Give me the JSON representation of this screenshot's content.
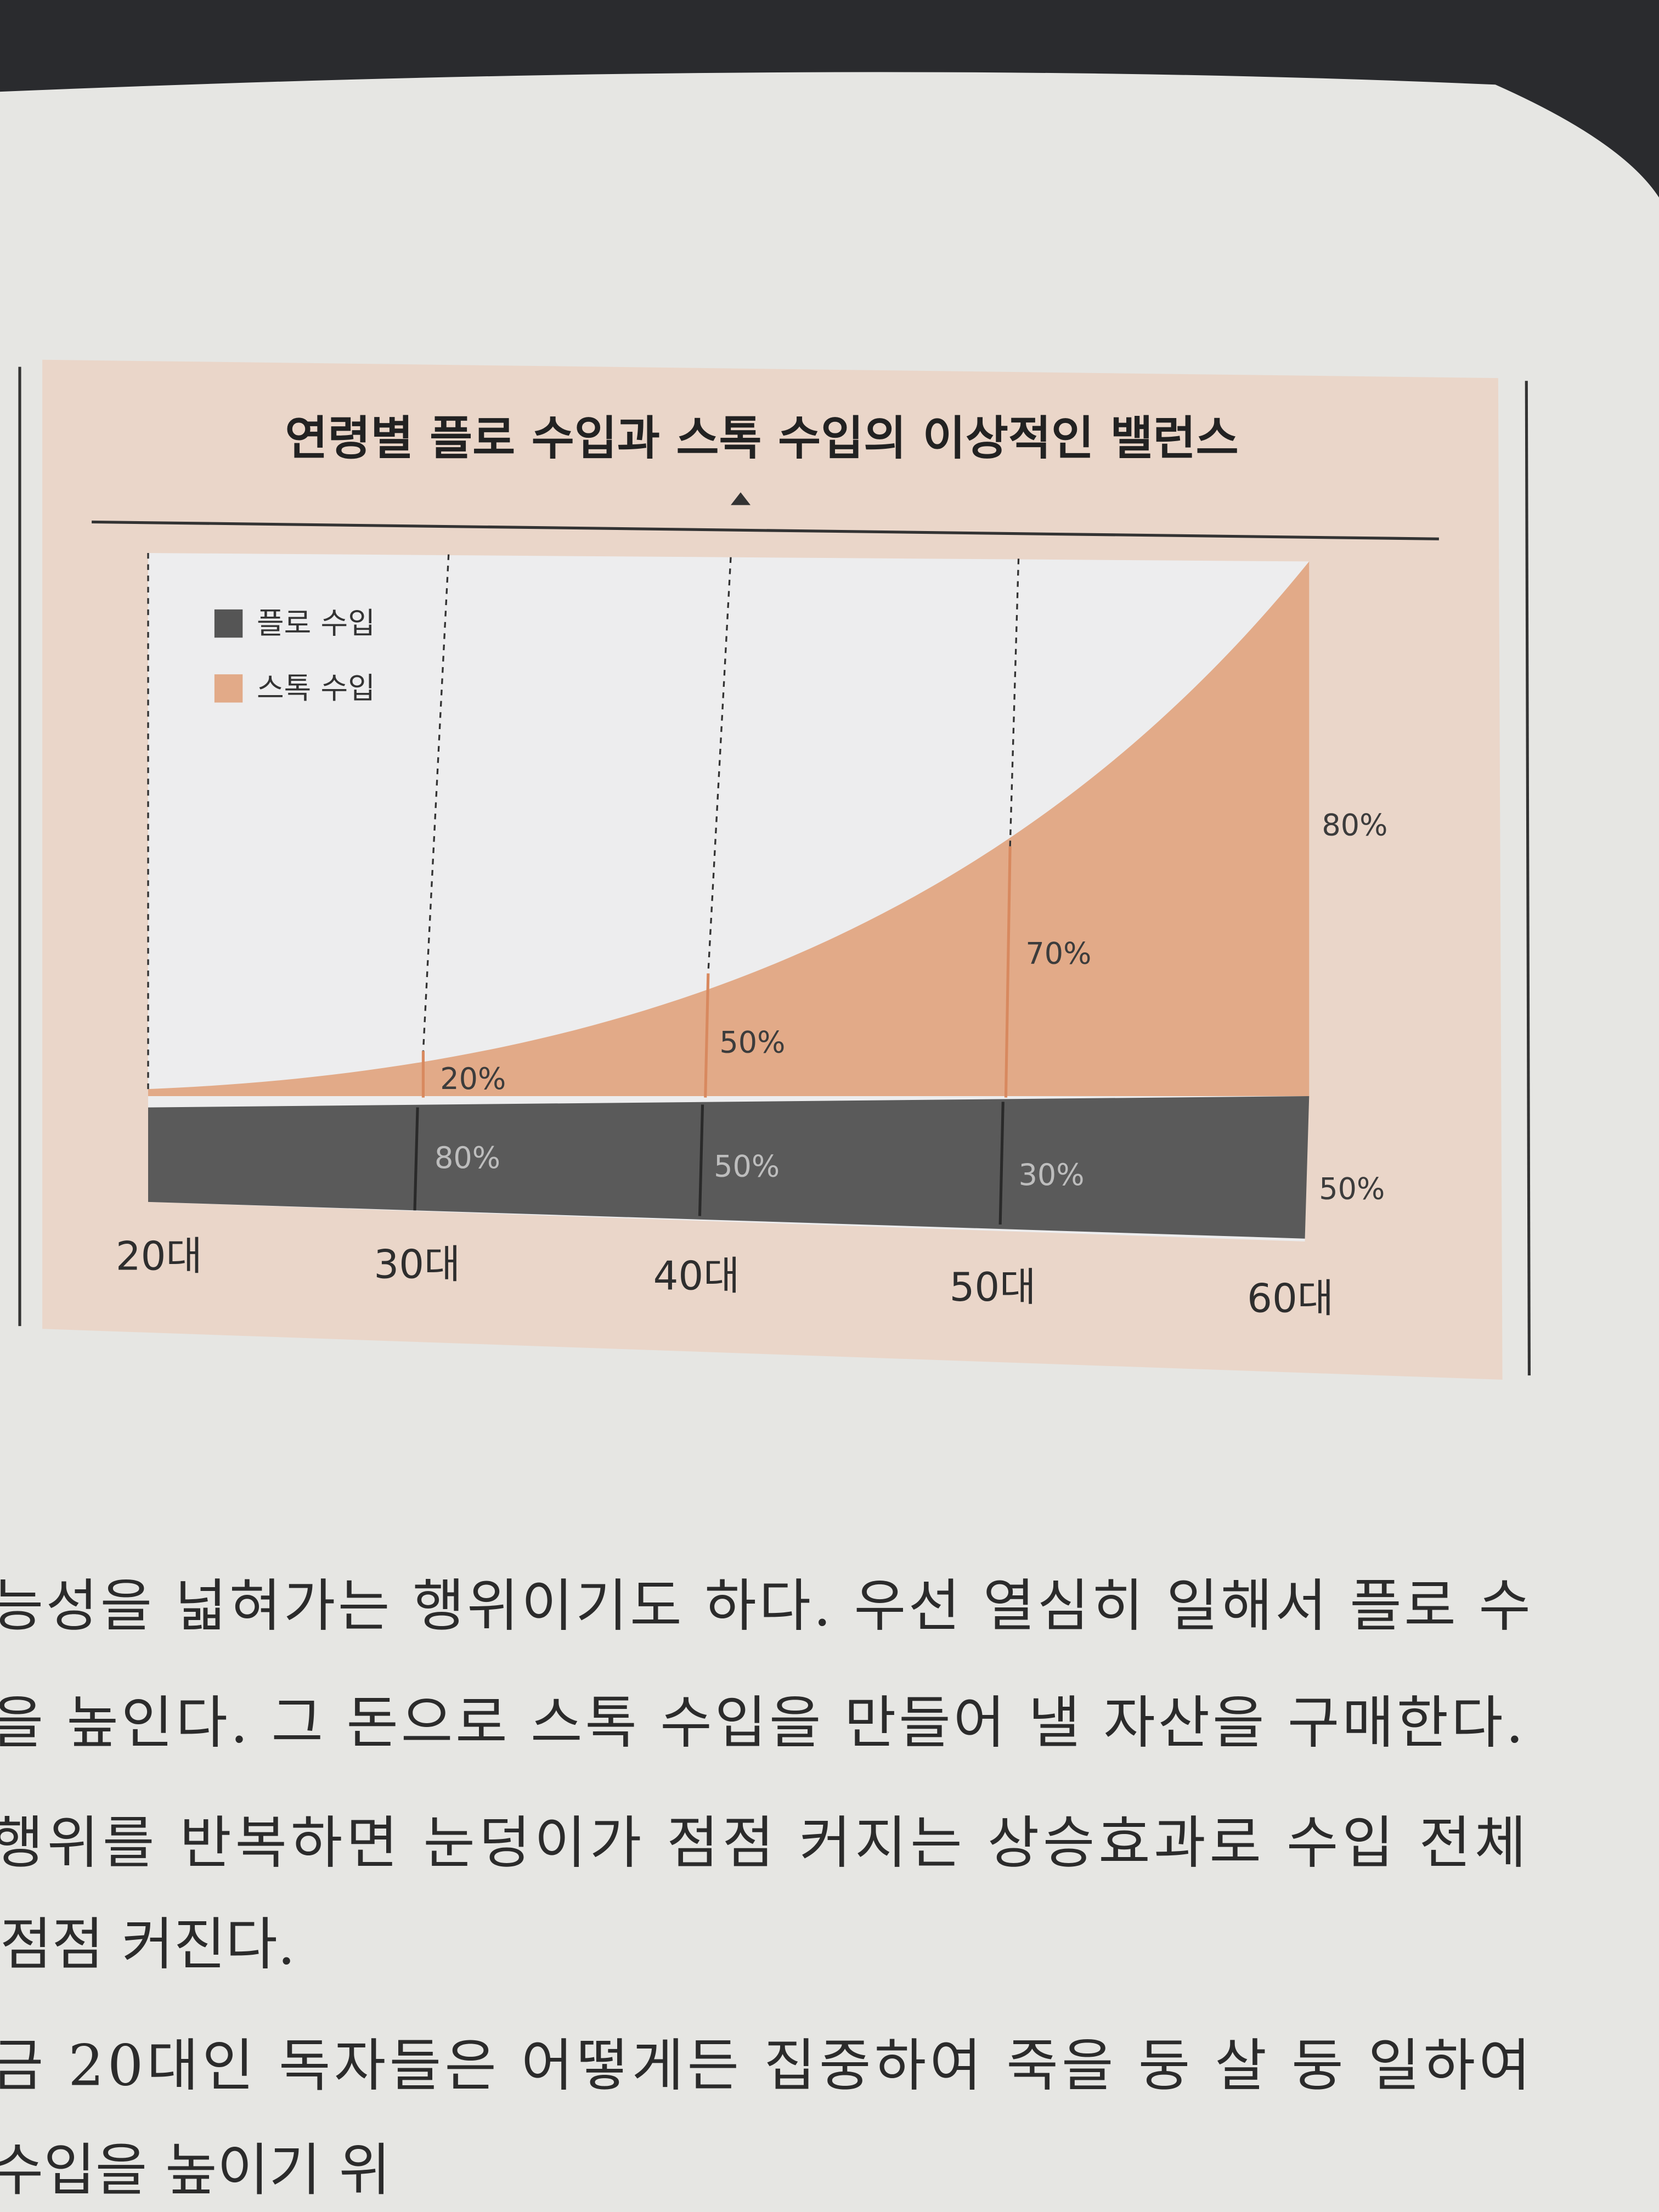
{
  "figure": {
    "title": "연령별 플로 수입과 스톡 수입의 이상적인 밸런스",
    "legend": [
      "플로 수입",
      "스톡 수입"
    ],
    "x_labels": [
      "20대",
      "30대",
      "40대",
      "50대",
      "60대"
    ],
    "stock_labels": [
      "20%",
      "50%",
      "70%",
      "80%"
    ],
    "flow_labels": [
      "80%",
      "50%",
      "30%",
      "50%"
    ]
  },
  "body": {
    "lines": [
      "능성을 넓혀가는 행위이기도 하다. 우선 열심히 일해서 플로 수",
      "을 높인다. 그 돈으로 스톡 수입을 만들어 낼 자산을 구매한다.",
      "행위를 반복하면 눈덩이가 점점 커지는 상승효과로 수입 전체",
      "점점 커진다.",
      "금 20대인 독자들은 어떻게든 집중하여 죽을 둥 살 둥 일하여",
      "수입을 높이기 위"
    ]
  }
}
